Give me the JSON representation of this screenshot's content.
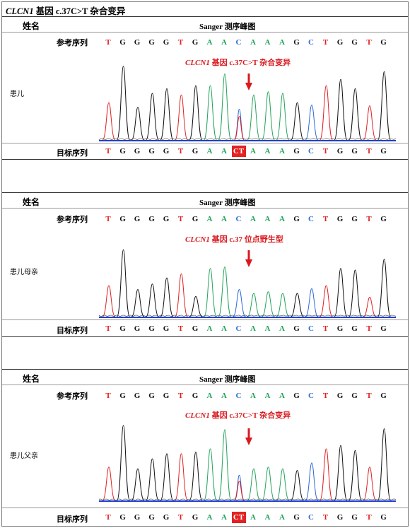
{
  "title": {
    "gene": "CLCN1",
    "rest": " 基因 c.37C>T 杂合变异"
  },
  "header": {
    "name_label": "姓名",
    "sanger_label": "Sanger 测序峰图"
  },
  "ref_label": "参考序列",
  "target_label": "目标序列",
  "colors": {
    "A": "#22a35a",
    "C": "#2a68d6",
    "G": "#111111",
    "T": "#e02020",
    "mutation_bg": "#e32222",
    "arrow": "#d9191e",
    "baseline": "#1f3fd6"
  },
  "panels": [
    {
      "subject": "患儿",
      "annotation_gene": "CLCN1",
      "annotation_rest": " 基因 c.37C>T 杂合变异",
      "ref_bases": [
        "T",
        "G",
        "G",
        "G",
        "G",
        "T",
        "G",
        "A",
        "A",
        "C",
        "A",
        "A",
        "A",
        "G",
        "C",
        "T",
        "G",
        "G",
        "T",
        "G"
      ],
      "target_bases": [
        "T",
        "G",
        "G",
        "G",
        "G",
        "T",
        "G",
        "A",
        "A",
        "CT",
        "A",
        "A",
        "A",
        "G",
        "C",
        "T",
        "G",
        "G",
        "T",
        "G"
      ],
      "mutation_index": 9
    },
    {
      "subject": "患儿母亲",
      "annotation_gene": "CLCN1",
      "annotation_rest": " 基因 c.37 位点野生型",
      "ref_bases": [
        "T",
        "G",
        "G",
        "G",
        "G",
        "T",
        "G",
        "A",
        "A",
        "C",
        "A",
        "A",
        "A",
        "G",
        "C",
        "T",
        "G",
        "G",
        "T",
        "G"
      ],
      "target_bases": [
        "T",
        "G",
        "G",
        "G",
        "G",
        "T",
        "G",
        "A",
        "A",
        "C",
        "A",
        "A",
        "A",
        "G",
        "C",
        "T",
        "G",
        "G",
        "T",
        "G"
      ],
      "mutation_index": -1
    },
    {
      "subject": "患儿父亲",
      "annotation_gene": "CLCN1",
      "annotation_rest": " 基因 c.37C>T 杂合变异",
      "ref_bases": [
        "T",
        "G",
        "G",
        "G",
        "G",
        "T",
        "G",
        "A",
        "A",
        "C",
        "A",
        "A",
        "A",
        "G",
        "C",
        "T",
        "G",
        "G",
        "T",
        "G"
      ],
      "target_bases": [
        "T",
        "G",
        "G",
        "G",
        "G",
        "T",
        "G",
        "A",
        "A",
        "CT",
        "A",
        "A",
        "A",
        "G",
        "C",
        "T",
        "G",
        "G",
        "T",
        "G"
      ],
      "mutation_index": 9
    }
  ]
}
